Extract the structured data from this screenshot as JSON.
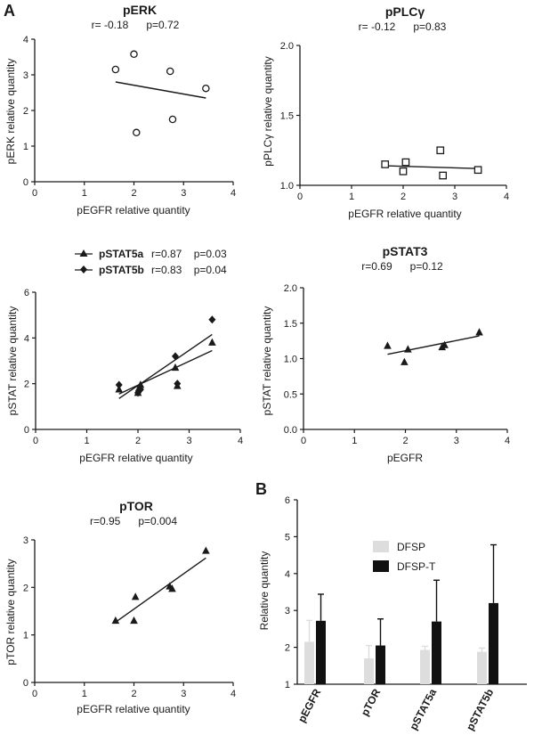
{
  "panel_labels": [
    "A",
    "B"
  ],
  "legend_stat5": {
    "a_name": "pSTAT5a",
    "a_stats": "r=0.87    p=0.03",
    "b_name": "pSTAT5b",
    "b_stats": "r=0.83    p=0.04"
  },
  "legend_bar": {
    "dfsp": "DFSP",
    "dfspt": "DFSP-T"
  },
  "chart_data": [
    {
      "type": "scatter",
      "title": "pERK",
      "stats": "r= -0.18      p=0.72",
      "xlabel": "pEGFR relative quantity",
      "ylabel": "pERK relative quantity",
      "xlim": [
        0,
        4
      ],
      "ylim": [
        0,
        4
      ],
      "xticks": [
        0,
        1,
        2,
        3,
        4
      ],
      "yticks": [
        0,
        1,
        2,
        3,
        4
      ],
      "marker": "circle",
      "series": [
        {
          "name": "pERK",
          "x": [
            1.63,
            2.0,
            2.05,
            2.73,
            2.78,
            3.45
          ],
          "y": [
            3.15,
            3.58,
            1.38,
            3.1,
            1.75,
            2.62
          ],
          "fit": [
            [
              1.63,
              2.8
            ],
            [
              3.45,
              2.35
            ]
          ]
        }
      ]
    },
    {
      "type": "scatter",
      "title": "pPLCγ",
      "stats": "r= -0.12      p=0.83",
      "xlabel": "pEGFR relative quantity",
      "ylabel": "pPLCγ relative quantity",
      "xlim": [
        0,
        4
      ],
      "ylim": [
        1.0,
        2.0
      ],
      "xticks": [
        0,
        1,
        2,
        3,
        4
      ],
      "yticks": [
        1.0,
        1.5,
        2.0
      ],
      "marker": "square",
      "series": [
        {
          "name": "pPLCγ",
          "x": [
            1.65,
            2.0,
            2.05,
            2.72,
            2.77,
            3.45
          ],
          "y": [
            1.15,
            1.1,
            1.165,
            1.25,
            1.07,
            1.11
          ],
          "fit": [
            [
              1.65,
              1.14
            ],
            [
              3.45,
              1.12
            ]
          ]
        }
      ]
    },
    {
      "type": "scatter",
      "title": "",
      "stats": "",
      "xlabel": "pEGFR relative quantity",
      "ylabel": "pSTAT relative quantity",
      "xlim": [
        0,
        4
      ],
      "ylim": [
        0,
        6
      ],
      "xticks": [
        0,
        1,
        2,
        3,
        4
      ],
      "yticks": [
        0,
        2,
        4,
        6
      ],
      "series": [
        {
          "name": "pSTAT5a",
          "marker": "triangle",
          "x": [
            1.63,
            2.0,
            2.02,
            2.05,
            2.73,
            2.77,
            3.45
          ],
          "y": [
            1.75,
            1.6,
            1.8,
            1.95,
            2.7,
            1.9,
            3.8
          ],
          "fit": [
            [
              1.63,
              1.35
            ],
            [
              3.45,
              4.15
            ]
          ]
        },
        {
          "name": "pSTAT5b",
          "marker": "diamond",
          "x": [
            1.63,
            2.0,
            2.02,
            2.05,
            2.73,
            2.77,
            3.45
          ],
          "y": [
            1.95,
            1.6,
            1.7,
            1.75,
            3.2,
            2.0,
            4.8
          ],
          "fit": [
            [
              1.63,
              1.55
            ],
            [
              3.45,
              3.45
            ]
          ]
        }
      ]
    },
    {
      "type": "scatter",
      "title": "pSTAT3",
      "stats": "r=0.69      p=0.12",
      "xlabel": "pEGFR",
      "ylabel": "pSTAT relative quantity",
      "xlim": [
        0,
        4
      ],
      "ylim": [
        0,
        2.0
      ],
      "xticks": [
        0,
        1,
        2,
        3,
        4
      ],
      "yticks": [
        0.0,
        0.5,
        1.0,
        1.5,
        2.0
      ],
      "marker": "triangle",
      "series": [
        {
          "name": "pSTAT3",
          "x": [
            1.65,
            1.98,
            2.05,
            2.72,
            2.77,
            3.45
          ],
          "y": [
            1.18,
            0.95,
            1.13,
            1.16,
            1.19,
            1.37
          ],
          "fit": [
            [
              1.65,
              1.06
            ],
            [
              3.45,
              1.32
            ]
          ]
        }
      ]
    },
    {
      "type": "scatter",
      "title": "pTOR",
      "stats": "r=0.95      p=0.004",
      "xlabel": "pEGFR relative quantity",
      "ylabel": "pTOR relative quantity",
      "xlim": [
        0,
        4
      ],
      "ylim": [
        0,
        3
      ],
      "xticks": [
        0,
        1,
        2,
        3,
        4
      ],
      "yticks": [
        0,
        1,
        2,
        3
      ],
      "marker": "triangle",
      "series": [
        {
          "name": "pTOR",
          "x": [
            1.63,
            2.0,
            2.03,
            2.72,
            2.77,
            3.45
          ],
          "y": [
            1.3,
            1.3,
            1.8,
            2.02,
            1.97,
            2.77
          ],
          "fit": [
            [
              1.63,
              1.27
            ],
            [
              3.45,
              2.62
            ]
          ]
        }
      ]
    },
    {
      "type": "bar",
      "title": "",
      "ylabel": "Relative quantity",
      "categories": [
        "pEGFR",
        "pTOR",
        "pSTAT5a",
        "pSTAT5b"
      ],
      "ylim": [
        1,
        6
      ],
      "yticks": [
        1,
        2,
        3,
        4,
        5,
        6
      ],
      "series": [
        {
          "name": "DFSP",
          "color": "#dddddd",
          "values": [
            2.15,
            1.7,
            1.93,
            1.88
          ],
          "errors": [
            0.58,
            0.35,
            0.1,
            0.1
          ]
        },
        {
          "name": "DFSP-T",
          "color": "#111111",
          "values": [
            2.72,
            2.05,
            2.7,
            3.2
          ],
          "errors": [
            0.72,
            0.72,
            1.12,
            1.58
          ]
        }
      ]
    }
  ]
}
